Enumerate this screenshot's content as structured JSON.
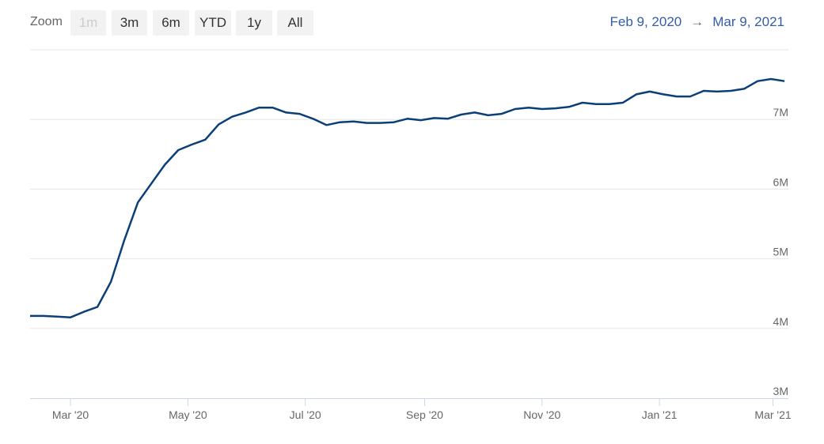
{
  "zoom": {
    "label": "Zoom",
    "buttons": [
      {
        "label": "1m",
        "disabled": true
      },
      {
        "label": "3m",
        "disabled": false
      },
      {
        "label": "6m",
        "disabled": false
      },
      {
        "label": "YTD",
        "disabled": false
      },
      {
        "label": "1y",
        "disabled": false
      },
      {
        "label": "All",
        "disabled": false
      }
    ]
  },
  "range": {
    "from": "Feb 9, 2020",
    "arrow": "→",
    "to": "Mar 9, 2021"
  },
  "colors": {
    "line": "#0b3f78",
    "grid": "#e6e6e6",
    "axis": "#ccd6eb",
    "text": "#666666",
    "range_text": "#335cad"
  },
  "chart_data": {
    "type": "line",
    "title": "",
    "xlabel": "",
    "ylabel": "",
    "xlim": [
      "2020-02-09",
      "2021-03-09"
    ],
    "ylim": [
      3000000,
      8000000
    ],
    "grid": true,
    "x_ticks": [
      {
        "label": "Mar '20",
        "date": "2020-03-01"
      },
      {
        "label": "May '20",
        "date": "2020-05-01"
      },
      {
        "label": "Jul '20",
        "date": "2020-07-01"
      },
      {
        "label": "Sep '20",
        "date": "2020-09-01"
      },
      {
        "label": "Nov '20",
        "date": "2020-11-01"
      },
      {
        "label": "Jan '21",
        "date": "2021-01-01"
      },
      {
        "label": "Mar '21",
        "date": "2021-03-01"
      }
    ],
    "y_ticks": [
      {
        "label": "3M",
        "value": 3000000
      },
      {
        "label": "4M",
        "value": 4000000
      },
      {
        "label": "5M",
        "value": 5000000
      },
      {
        "label": "6M",
        "value": 6000000
      },
      {
        "label": "7M",
        "value": 7000000
      }
    ],
    "series": [
      {
        "x": [
          "2020-02-09",
          "2020-02-16",
          "2020-02-23",
          "2020-03-01",
          "2020-03-08",
          "2020-03-15",
          "2020-03-22",
          "2020-03-29",
          "2020-04-05",
          "2020-04-12",
          "2020-04-19",
          "2020-04-26",
          "2020-05-03",
          "2020-05-10",
          "2020-05-17",
          "2020-05-24",
          "2020-05-31",
          "2020-06-07",
          "2020-06-14",
          "2020-06-21",
          "2020-06-28",
          "2020-07-05",
          "2020-07-12",
          "2020-07-19",
          "2020-07-26",
          "2020-08-02",
          "2020-08-09",
          "2020-08-16",
          "2020-08-23",
          "2020-08-30",
          "2020-09-06",
          "2020-09-13",
          "2020-09-20",
          "2020-09-27",
          "2020-10-04",
          "2020-10-11",
          "2020-10-18",
          "2020-10-25",
          "2020-11-01",
          "2020-11-08",
          "2020-11-15",
          "2020-11-22",
          "2020-11-29",
          "2020-12-06",
          "2020-12-13",
          "2020-12-20",
          "2020-12-27",
          "2021-01-03",
          "2021-01-10",
          "2021-01-17",
          "2021-01-24",
          "2021-01-31",
          "2021-02-07",
          "2021-02-14",
          "2021-02-21",
          "2021-02-28",
          "2021-03-07"
        ],
        "y": [
          4180000,
          4180000,
          4170000,
          4160000,
          4240000,
          4310000,
          4670000,
          5270000,
          5810000,
          6080000,
          6350000,
          6560000,
          6640000,
          6710000,
          6930000,
          7040000,
          7100000,
          7170000,
          7170000,
          7100000,
          7080000,
          7010000,
          6920000,
          6960000,
          6970000,
          6950000,
          6950000,
          6960000,
          7010000,
          6990000,
          7020000,
          7010000,
          7070000,
          7100000,
          7060000,
          7080000,
          7150000,
          7170000,
          7150000,
          7160000,
          7180000,
          7240000,
          7220000,
          7220000,
          7240000,
          7360000,
          7400000,
          7360000,
          7330000,
          7330000,
          7410000,
          7400000,
          7410000,
          7440000,
          7550000,
          7580000,
          7550000
        ]
      }
    ]
  }
}
